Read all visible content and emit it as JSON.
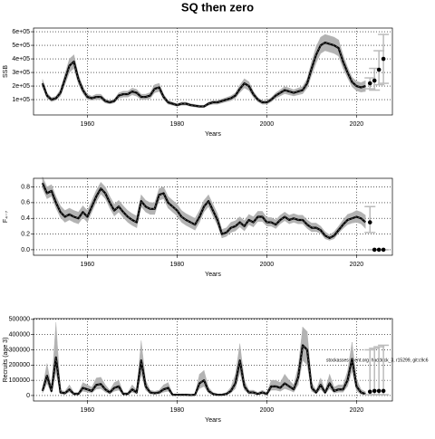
{
  "title": "SQ then zero",
  "annotation": "stockassessment.org, haddock_3, r15299, git:c9c6",
  "chart_data": [
    {
      "type": "line",
      "y_label": "SSB",
      "x_label": "Years",
      "line_color": "#000000",
      "band_color": "#b3b3b3",
      "bar_color": "#bbbbbb",
      "grid": true,
      "xlim": [
        1948,
        2028
      ],
      "xticks": [
        1960,
        1980,
        2000,
        2020
      ],
      "ylim": [
        -13000,
        627000
      ],
      "yticks": [
        {
          "value": 100000,
          "label": "1e+05"
        },
        {
          "value": 200000,
          "label": "2e+05"
        },
        {
          "value": 300000,
          "label": "3e+05"
        },
        {
          "value": 400000,
          "label": "4e+05"
        },
        {
          "value": 500000,
          "label": "5e+05"
        },
        {
          "value": 600000,
          "label": "6e+05"
        }
      ],
      "x": [
        1950,
        1951,
        1952,
        1953,
        1954,
        1955,
        1956,
        1957,
        1958,
        1959,
        1960,
        1961,
        1962,
        1963,
        1964,
        1965,
        1966,
        1967,
        1968,
        1969,
        1970,
        1971,
        1972,
        1973,
        1974,
        1975,
        1976,
        1977,
        1978,
        1979,
        1980,
        1981,
        1982,
        1983,
        1984,
        1985,
        1986,
        1987,
        1988,
        1989,
        1990,
        1991,
        1992,
        1993,
        1994,
        1995,
        1996,
        1997,
        1998,
        1999,
        2000,
        2001,
        2002,
        2003,
        2004,
        2005,
        2006,
        2007,
        2008,
        2009,
        2010,
        2011,
        2012,
        2013,
        2014,
        2015,
        2016,
        2017,
        2018,
        2019,
        2020,
        2021,
        2022
      ],
      "values": [
        220000,
        130000,
        100000,
        110000,
        150000,
        250000,
        350000,
        380000,
        250000,
        170000,
        120000,
        110000,
        120000,
        120000,
        90000,
        80000,
        90000,
        130000,
        140000,
        140000,
        160000,
        150000,
        120000,
        120000,
        130000,
        180000,
        190000,
        120000,
        80000,
        70000,
        60000,
        70000,
        70000,
        60000,
        55000,
        50000,
        50000,
        70000,
        80000,
        80000,
        90000,
        100000,
        110000,
        130000,
        180000,
        220000,
        200000,
        140000,
        100000,
        80000,
        80000,
        100000,
        130000,
        150000,
        170000,
        160000,
        150000,
        160000,
        170000,
        220000,
        330000,
        430000,
        500000,
        520000,
        510000,
        500000,
        480000,
        380000,
        300000,
        230000,
        200000,
        190000,
        200000
      ],
      "lower": [
        190000,
        110000,
        85000,
        95000,
        125000,
        210000,
        300000,
        330000,
        215000,
        145000,
        100000,
        95000,
        100000,
        100000,
        75000,
        68000,
        76000,
        110000,
        118000,
        118000,
        135000,
        125000,
        100000,
        100000,
        108000,
        150000,
        160000,
        100000,
        66000,
        58000,
        50000,
        58000,
        58000,
        50000,
        45000,
        41000,
        41000,
        58000,
        66000,
        66000,
        75000,
        84000,
        92000,
        110000,
        152000,
        186000,
        168000,
        118000,
        84000,
        66000,
        66000,
        84000,
        110000,
        127000,
        144000,
        135000,
        127000,
        135000,
        143000,
        185000,
        280000,
        370000,
        440000,
        460000,
        450000,
        440000,
        420000,
        330000,
        260000,
        195000,
        165000,
        155000,
        160000
      ],
      "upper": [
        250000,
        150000,
        115000,
        125000,
        175000,
        290000,
        400000,
        430000,
        285000,
        195000,
        140000,
        125000,
        140000,
        140000,
        105000,
        92000,
        104000,
        150000,
        162000,
        162000,
        185000,
        175000,
        140000,
        140000,
        152000,
        210000,
        220000,
        140000,
        94000,
        82000,
        70000,
        82000,
        82000,
        70000,
        65000,
        59000,
        59000,
        82000,
        94000,
        94000,
        105000,
        116000,
        128000,
        150000,
        208000,
        254000,
        232000,
        162000,
        116000,
        94000,
        94000,
        116000,
        150000,
        173000,
        196000,
        185000,
        173000,
        185000,
        197000,
        255000,
        380000,
        490000,
        560000,
        580000,
        570000,
        560000,
        540000,
        430000,
        340000,
        265000,
        235000,
        225000,
        240000
      ],
      "forecast": {
        "x": [
          2023,
          2024,
          2025,
          2026
        ],
        "values": [
          220000,
          240000,
          320000,
          400000
        ],
        "lower": [
          180000,
          170000,
          210000,
          220000
        ],
        "upper": [
          260000,
          330000,
          460000,
          580000
        ]
      }
    },
    {
      "type": "line",
      "y_label": "F₄₋₇",
      "x_label": "Years",
      "line_color": "#000000",
      "band_color": "#b3b3b3",
      "bar_color": "#bbbbbb",
      "grid": true,
      "xlim": [
        1948,
        2028
      ],
      "xticks": [
        1960,
        1980,
        2000,
        2020
      ],
      "ylim": [
        -0.07,
        0.91
      ],
      "yticks": [
        {
          "value": 0,
          "label": "0.0"
        },
        0.2,
        0.4,
        0.6,
        0.8
      ],
      "x": [
        1950,
        1951,
        1952,
        1953,
        1954,
        1955,
        1956,
        1957,
        1958,
        1959,
        1960,
        1961,
        1962,
        1963,
        1964,
        1965,
        1966,
        1967,
        1968,
        1969,
        1970,
        1971,
        1972,
        1973,
        1974,
        1975,
        1976,
        1977,
        1978,
        1979,
        1980,
        1981,
        1982,
        1983,
        1984,
        1985,
        1986,
        1987,
        1988,
        1989,
        1990,
        1991,
        1992,
        1993,
        1994,
        1995,
        1996,
        1997,
        1998,
        1999,
        2000,
        2001,
        2002,
        2003,
        2004,
        2005,
        2006,
        2007,
        2008,
        2009,
        2010,
        2011,
        2012,
        2013,
        2014,
        2015,
        2016,
        2017,
        2018,
        2019,
        2020,
        2021,
        2022
      ],
      "values": [
        0.85,
        0.72,
        0.75,
        0.6,
        0.48,
        0.42,
        0.45,
        0.42,
        0.4,
        0.48,
        0.42,
        0.55,
        0.68,
        0.78,
        0.72,
        0.6,
        0.5,
        0.55,
        0.48,
        0.42,
        0.38,
        0.35,
        0.62,
        0.55,
        0.52,
        0.52,
        0.7,
        0.72,
        0.6,
        0.55,
        0.5,
        0.42,
        0.38,
        0.35,
        0.32,
        0.42,
        0.55,
        0.62,
        0.5,
        0.38,
        0.2,
        0.22,
        0.28,
        0.3,
        0.35,
        0.3,
        0.38,
        0.35,
        0.42,
        0.42,
        0.35,
        0.35,
        0.32,
        0.38,
        0.42,
        0.38,
        0.4,
        0.38,
        0.38,
        0.32,
        0.28,
        0.28,
        0.25,
        0.18,
        0.15,
        0.18,
        0.25,
        0.32,
        0.38,
        0.4,
        0.42,
        0.4,
        0.35
      ],
      "lower": [
        0.78,
        0.65,
        0.68,
        0.53,
        0.41,
        0.35,
        0.38,
        0.35,
        0.33,
        0.41,
        0.35,
        0.48,
        0.61,
        0.71,
        0.65,
        0.53,
        0.43,
        0.48,
        0.41,
        0.35,
        0.31,
        0.28,
        0.55,
        0.48,
        0.45,
        0.45,
        0.63,
        0.65,
        0.53,
        0.48,
        0.43,
        0.35,
        0.31,
        0.28,
        0.25,
        0.35,
        0.48,
        0.55,
        0.43,
        0.31,
        0.15,
        0.17,
        0.22,
        0.24,
        0.29,
        0.24,
        0.32,
        0.29,
        0.36,
        0.36,
        0.3,
        0.3,
        0.27,
        0.33,
        0.37,
        0.33,
        0.35,
        0.33,
        0.33,
        0.27,
        0.23,
        0.23,
        0.21,
        0.14,
        0.12,
        0.14,
        0.21,
        0.27,
        0.32,
        0.34,
        0.35,
        0.33,
        0.27
      ],
      "upper": [
        0.93,
        0.8,
        0.83,
        0.68,
        0.56,
        0.5,
        0.53,
        0.5,
        0.48,
        0.56,
        0.5,
        0.63,
        0.76,
        0.86,
        0.8,
        0.68,
        0.58,
        0.63,
        0.56,
        0.5,
        0.46,
        0.43,
        0.7,
        0.63,
        0.6,
        0.6,
        0.78,
        0.8,
        0.68,
        0.63,
        0.58,
        0.5,
        0.46,
        0.43,
        0.4,
        0.5,
        0.63,
        0.7,
        0.58,
        0.46,
        0.26,
        0.28,
        0.35,
        0.37,
        0.42,
        0.37,
        0.45,
        0.42,
        0.49,
        0.49,
        0.41,
        0.41,
        0.38,
        0.44,
        0.48,
        0.44,
        0.46,
        0.44,
        0.44,
        0.38,
        0.34,
        0.34,
        0.3,
        0.23,
        0.19,
        0.23,
        0.3,
        0.38,
        0.45,
        0.47,
        0.5,
        0.48,
        0.44
      ],
      "forecast": {
        "x": [
          2023,
          2024,
          2025,
          2026
        ],
        "values": [
          0.35,
          0,
          0,
          0
        ],
        "lower": [
          0.22,
          0,
          0,
          0
        ],
        "upper": [
          0.55,
          0,
          0,
          0
        ]
      }
    },
    {
      "type": "line",
      "y_label": "Recruits (age 3)",
      "x_label": "Years",
      "line_color": "#000000",
      "band_color": "#b3b3b3",
      "bar_color": "#bbbbbb",
      "grid": true,
      "xlim": [
        1948,
        2028
      ],
      "xticks": [
        1960,
        1980,
        2000,
        2020
      ],
      "ylim": [
        -36000,
        505000
      ],
      "yticks": [
        0,
        100000,
        200000,
        300000,
        400000,
        500000
      ],
      "x": [
        1950,
        1951,
        1952,
        1953,
        1954,
        1955,
        1956,
        1957,
        1958,
        1959,
        1960,
        1961,
        1962,
        1963,
        1964,
        1965,
        1966,
        1967,
        1968,
        1969,
        1970,
        1971,
        1972,
        1973,
        1974,
        1975,
        1976,
        1977,
        1978,
        1979,
        1980,
        1981,
        1982,
        1983,
        1984,
        1985,
        1986,
        1987,
        1988,
        1989,
        1990,
        1991,
        1992,
        1993,
        1994,
        1995,
        1996,
        1997,
        1998,
        1999,
        2000,
        2001,
        2002,
        2003,
        2004,
        2005,
        2006,
        2007,
        2008,
        2009,
        2010,
        2011,
        2012,
        2013,
        2014,
        2015,
        2016,
        2017,
        2018,
        2019,
        2020,
        2021,
        2022
      ],
      "values": [
        30000,
        130000,
        30000,
        250000,
        20000,
        15000,
        40000,
        10000,
        10000,
        50000,
        40000,
        30000,
        70000,
        75000,
        40000,
        20000,
        50000,
        60000,
        10000,
        10000,
        40000,
        20000,
        230000,
        60000,
        20000,
        15000,
        20000,
        40000,
        50000,
        5000,
        5000,
        5000,
        5000,
        3000,
        5000,
        80000,
        100000,
        30000,
        10000,
        5000,
        5000,
        10000,
        30000,
        80000,
        230000,
        60000,
        20000,
        20000,
        10000,
        20000,
        10000,
        60000,
        60000,
        50000,
        80000,
        60000,
        40000,
        120000,
        330000,
        300000,
        50000,
        20000,
        70000,
        20000,
        80000,
        30000,
        40000,
        40000,
        100000,
        240000,
        60000,
        20000,
        10000
      ],
      "lower": [
        15000,
        80000,
        15000,
        150000,
        10000,
        8000,
        22000,
        5000,
        5000,
        28000,
        22000,
        16000,
        42000,
        45000,
        22000,
        10000,
        28000,
        35000,
        5000,
        5000,
        22000,
        10000,
        140000,
        35000,
        10000,
        8000,
        10000,
        22000,
        28000,
        2000,
        2000,
        2000,
        2000,
        1000,
        2000,
        45000,
        60000,
        16000,
        5000,
        2000,
        2000,
        5000,
        16000,
        45000,
        150000,
        35000,
        10000,
        10000,
        5000,
        10000,
        5000,
        35000,
        35000,
        28000,
        45000,
        35000,
        22000,
        70000,
        230000,
        200000,
        28000,
        10000,
        40000,
        10000,
        45000,
        16000,
        22000,
        22000,
        60000,
        160000,
        30000,
        8000,
        4000
      ],
      "upper": [
        50000,
        210000,
        55000,
        480000,
        35000,
        28000,
        70000,
        20000,
        20000,
        85000,
        70000,
        55000,
        115000,
        120000,
        70000,
        35000,
        85000,
        100000,
        20000,
        20000,
        70000,
        35000,
        360000,
        100000,
        35000,
        28000,
        35000,
        70000,
        85000,
        10000,
        10000,
        10000,
        10000,
        6000,
        10000,
        140000,
        165000,
        55000,
        20000,
        10000,
        10000,
        20000,
        55000,
        140000,
        340000,
        100000,
        35000,
        35000,
        20000,
        35000,
        20000,
        100000,
        100000,
        85000,
        140000,
        100000,
        70000,
        190000,
        450000,
        420000,
        85000,
        35000,
        115000,
        35000,
        140000,
        55000,
        70000,
        70000,
        160000,
        350000,
        110000,
        40000,
        25000
      ],
      "forecast": {
        "x": [
          2023,
          2024,
          2025,
          2026
        ],
        "values": [
          25000,
          30000,
          30000,
          30000
        ],
        "lower": [
          5000,
          5000,
          5000,
          5000
        ],
        "upper": [
          300000,
          310000,
          320000,
          330000
        ]
      }
    }
  ]
}
